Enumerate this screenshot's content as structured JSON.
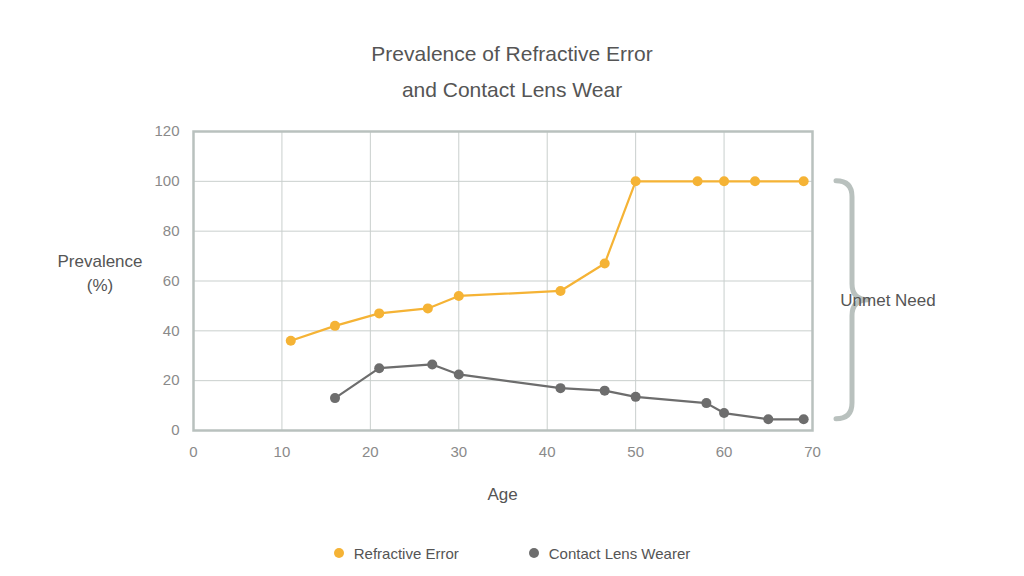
{
  "chart_data": {
    "type": "line",
    "title": "Prevalence of Refractive Error\nand Contact Lens Wear",
    "x_label": "Age",
    "y_label": "Prevalence\n(%)",
    "xlim": [
      0,
      70
    ],
    "xticks": [
      0,
      10,
      20,
      30,
      40,
      50,
      60,
      70
    ],
    "ylim": [
      0,
      120
    ],
    "yticks": [
      0,
      20,
      40,
      60,
      80,
      100,
      120
    ],
    "grid": true,
    "legend": "bottom",
    "annotations": [
      {
        "text": "Unmet Need"
      }
    ],
    "series": [
      {
        "name": "Refractive Error",
        "color": "#f5b335",
        "marker": "circle",
        "line_style": "solid",
        "x": [
          11,
          16,
          21,
          26.5,
          30,
          41.5,
          46.5,
          50,
          57,
          60,
          63.5,
          69
        ],
        "values": [
          36,
          42,
          47,
          49,
          54,
          56,
          67,
          100,
          100,
          100,
          100,
          100
        ]
      },
      {
        "name": "Contact Lens Wearer",
        "color": "#6d6d6d",
        "marker": "circle",
        "line_style": "solid",
        "x": [
          16,
          21,
          27,
          30,
          41.5,
          46.5,
          50,
          58,
          60,
          65,
          69
        ],
        "values": [
          13,
          25,
          26.5,
          22.5,
          17,
          16,
          13.5,
          11,
          7,
          4.5,
          4.5
        ]
      }
    ]
  }
}
